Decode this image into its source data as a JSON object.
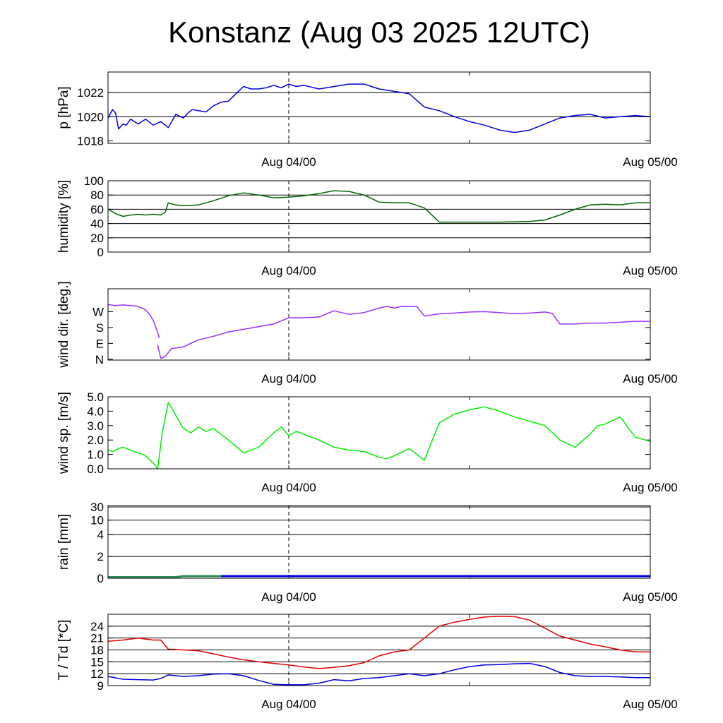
{
  "title": "Konstanz (Aug 03 2025 12UTC)",
  "chart_data": [
    {
      "type": "line",
      "ylabel": "p [hPa]",
      "ylim": [
        1017.8,
        1023.7
      ],
      "yticks": [
        1018,
        1020,
        1022
      ],
      "yticklabels": [
        "1018",
        "1020",
        "1022"
      ],
      "gridlines": [
        1020,
        1022
      ],
      "xticklabels": [
        "Aug 04/00",
        "Aug 05/00"
      ],
      "series": [
        {
          "color": "#0000e0",
          "x": [
            0,
            0.3,
            0.5,
            0.7,
            1.0,
            1.2,
            1.5,
            2.0,
            2.5,
            3.0,
            3.5,
            4.0,
            4.5,
            5.0,
            5.3,
            5.6,
            6.0,
            6.5,
            7.0,
            7.5,
            8.0,
            8.5,
            9.0,
            9.5,
            10,
            10.5,
            11,
            11.5,
            12,
            12.5,
            13,
            14,
            15,
            16,
            17,
            18,
            19,
            20,
            21,
            22,
            23,
            24,
            25,
            26,
            27,
            28,
            29,
            30,
            31,
            32,
            33,
            34,
            35,
            36
          ],
          "y": [
            1019.9,
            1020.6,
            1020.3,
            1019.0,
            1019.4,
            1019.3,
            1019.8,
            1019.4,
            1019.8,
            1019.3,
            1019.6,
            1019.1,
            1020.2,
            1019.9,
            1020.3,
            1020.6,
            1020.5,
            1020.4,
            1020.9,
            1021.2,
            1021.3,
            1021.9,
            1022.5,
            1022.3,
            1022.3,
            1022.4,
            1022.6,
            1022.4,
            1022.7,
            1022.5,
            1022.6,
            1022.3,
            1022.5,
            1022.7,
            1022.7,
            1022.3,
            1022.1,
            1021.9,
            1020.8,
            1020.5,
            1020.0,
            1019.6,
            1019.3,
            1018.9,
            1018.7,
            1018.9,
            1019.4,
            1019.9,
            1020.1,
            1020.2,
            1019.9,
            1020.0,
            1020.1,
            1020.0
          ]
        }
      ]
    },
    {
      "type": "line",
      "ylabel": "humidity [%]",
      "ylim": [
        0,
        100
      ],
      "yticks": [
        0,
        20,
        40,
        60,
        80,
        100
      ],
      "yticklabels": [
        "0",
        "20",
        "40",
        "60",
        "80",
        "100"
      ],
      "gridlines": [
        20,
        40,
        60,
        80
      ],
      "xticklabels": [
        "Aug 04/00",
        "Aug 05/00"
      ],
      "series": [
        {
          "color": "#006400",
          "x": [
            0,
            0.5,
            1.0,
            1.5,
            2.0,
            2.5,
            3.0,
            3.5,
            3.8,
            4.0,
            4.5,
            5.0,
            6.0,
            7.0,
            8.0,
            9.0,
            10.0,
            11.0,
            12.0,
            13.0,
            14.0,
            15.0,
            16.0,
            17.0,
            18.0,
            19.0,
            20.0,
            21.0,
            22.0,
            24.0,
            26.0,
            28.0,
            29.0,
            30.0,
            31.0,
            32.0,
            33.0,
            34.0,
            35.0,
            36.0
          ],
          "y": [
            60,
            54,
            50,
            52,
            53,
            52,
            53,
            52,
            56,
            69,
            66,
            65,
            66,
            72,
            79,
            83,
            80,
            76,
            77,
            79,
            82,
            86,
            85,
            80,
            70,
            69,
            69,
            62,
            42,
            42,
            42,
            43,
            45,
            52,
            60,
            66,
            67,
            66,
            69,
            69
          ]
        }
      ]
    },
    {
      "type": "line",
      "ylabel": "wind dir. [deg.]",
      "ylim": [
        -5,
        400
      ],
      "yticks": [
        0,
        90,
        180,
        270
      ],
      "yticklabels": [
        "N",
        "E",
        "S",
        "W"
      ],
      "gridlines": [],
      "xticklabels": [
        "Aug 04/00",
        "Aug 05/00"
      ],
      "series": [
        {
          "color": "#9b30ff",
          "x": [
            0,
            0.5,
            1.0,
            1.5,
            2.0,
            2.5,
            2.8,
            3.0,
            3.1,
            3.2,
            3.3,
            3.4
          ],
          "y": [
            310,
            305,
            308,
            305,
            300,
            280,
            250,
            220,
            200,
            175,
            150,
            120
          ]
        },
        {
          "color": "#9b30ff",
          "x": [
            3.3,
            3.5,
            3.8,
            4.2,
            5.0,
            6.0,
            7.0,
            8.0,
            9.0,
            10.0,
            11.0,
            12.0,
            13.0,
            14.0,
            15.0,
            16.0,
            17.0,
            18.0,
            18.5,
            19.0,
            19.5,
            20.0,
            20.5,
            21.0,
            22.0,
            23.0,
            24.0,
            25.0,
            26.0,
            27.0,
            28.0,
            29.0,
            29.5,
            30.0,
            31.0,
            32.0,
            33.0,
            34.0,
            35.0,
            36.0
          ],
          "y": [
            80,
            5,
            15,
            60,
            70,
            110,
            130,
            155,
            170,
            185,
            200,
            235,
            235,
            240,
            275,
            255,
            265,
            290,
            300,
            290,
            300,
            300,
            300,
            245,
            258,
            262,
            268,
            270,
            265,
            258,
            262,
            268,
            260,
            200,
            200,
            205,
            205,
            210,
            215,
            215
          ]
        }
      ]
    },
    {
      "type": "line",
      "ylabel": "wind sp. [m/s]",
      "ylim": [
        0,
        5.0
      ],
      "yticks": [
        0,
        1,
        2,
        3,
        4,
        5
      ],
      "yticklabels": [
        "0.0",
        "1.0",
        "2.0",
        "3.0",
        "4.0",
        "5.0"
      ],
      "gridlines": [],
      "xticklabels": [
        "Aug 04/00",
        "Aug 05/00"
      ],
      "series": [
        {
          "color": "#00ee00",
          "x": [
            0,
            0.3,
            0.7,
            1.0,
            1.5,
            2.0,
            2.5,
            3.0,
            3.3,
            3.6,
            4.0,
            4.3,
            5.0,
            5.5,
            6.0,
            6.5,
            7.0,
            8.0,
            9.0,
            10.0,
            11.0,
            11.5,
            12.0,
            12.5,
            13.0,
            14.0,
            15.0,
            16.0,
            17.0,
            18.0,
            18.5,
            19.0,
            20.0,
            21.0,
            22.0,
            23.0,
            24.0,
            25.0,
            26.0,
            27.0,
            28.0,
            29.0,
            30.0,
            31.0,
            32.0,
            32.5,
            33.0,
            34.0,
            35.0,
            36.0
          ],
          "y": [
            1.3,
            1.2,
            1.4,
            1.5,
            1.3,
            1.1,
            0.9,
            0.4,
            0.0,
            2.5,
            4.6,
            4.1,
            2.8,
            2.5,
            2.9,
            2.6,
            2.8,
            2.0,
            1.1,
            1.5,
            2.5,
            2.9,
            2.3,
            2.6,
            2.4,
            2.0,
            1.5,
            1.3,
            1.2,
            0.8,
            0.7,
            0.9,
            1.4,
            0.6,
            3.2,
            3.8,
            4.1,
            4.3,
            4.0,
            3.6,
            3.3,
            3.0,
            2.0,
            1.5,
            2.4,
            3.0,
            3.1,
            3.6,
            2.2,
            1.9
          ]
        }
      ]
    },
    {
      "type": "area",
      "ylabel": "rain [mm]",
      "ylim": [
        0,
        35
      ],
      "yticks": [
        0,
        2,
        4,
        10,
        30
      ],
      "yticklabels": [
        "0",
        "2",
        "4",
        "10",
        "30"
      ],
      "gridlines": [
        2,
        4,
        10,
        30
      ],
      "xticklabels": [
        "Aug 04/00",
        "Aug 05/00"
      ],
      "series": [
        {
          "color": "#2e8b57",
          "x": [
            0,
            4.5,
            5.0,
            7.5,
            8.0
          ],
          "y": [
            0,
            0,
            0.1,
            0.1,
            0.1
          ]
        },
        {
          "color": "#0000e0",
          "x": [
            7.5,
            36.0
          ],
          "y": [
            0.1,
            0.1
          ]
        }
      ]
    },
    {
      "type": "line",
      "ylabel": "T / Td [*C]",
      "ylim": [
        9,
        27
      ],
      "yticks": [
        9,
        12,
        15,
        18,
        21,
        24
      ],
      "yticklabels": [
        "9",
        "12",
        "15",
        "18",
        "21",
        "24"
      ],
      "gridlines": [
        12,
        15,
        18,
        21,
        24
      ],
      "xticklabels": [
        "Aug 04/00",
        "Aug 05/00"
      ],
      "series": [
        {
          "color": "#e00000",
          "x": [
            0,
            1,
            2,
            3,
            3.5,
            4,
            5,
            6,
            7,
            8,
            9,
            10,
            11,
            12,
            13,
            14,
            15,
            16,
            17,
            18,
            19,
            20,
            21,
            22,
            23,
            24,
            25,
            26,
            27,
            28,
            29,
            30,
            31,
            32,
            33,
            34,
            35,
            36
          ],
          "y": [
            20.2,
            20.5,
            21.0,
            20.5,
            20.5,
            18.2,
            18.0,
            17.8,
            17.0,
            16.2,
            15.5,
            15.0,
            14.6,
            14.2,
            13.7,
            13.3,
            13.6,
            14.0,
            14.8,
            16.5,
            17.5,
            18.0,
            21.0,
            24.0,
            25.0,
            25.7,
            26.3,
            26.5,
            26.4,
            25.5,
            23.5,
            21.5,
            20.5,
            19.5,
            18.8,
            18.0,
            17.5,
            17.5
          ]
        },
        {
          "color": "#0000e0",
          "x": [
            0,
            1,
            2,
            3,
            3.5,
            4,
            5,
            6,
            7,
            8,
            9,
            10,
            11,
            12,
            13,
            14,
            15,
            16,
            17,
            18,
            19,
            20,
            21,
            22,
            23,
            24,
            25,
            26,
            27,
            28,
            29,
            30,
            31,
            32,
            33,
            34,
            35,
            36
          ],
          "y": [
            11.3,
            10.6,
            10.5,
            10.4,
            10.8,
            11.7,
            11.3,
            11.5,
            11.9,
            12.0,
            11.5,
            10.3,
            9.3,
            9.2,
            9.2,
            9.6,
            10.5,
            10.2,
            10.8,
            11.0,
            11.5,
            12.0,
            11.5,
            12.0,
            13.0,
            13.8,
            14.2,
            14.3,
            14.5,
            14.6,
            13.8,
            12.3,
            11.5,
            11.3,
            11.3,
            11.2,
            11.0,
            11.0
          ]
        }
      ]
    }
  ]
}
